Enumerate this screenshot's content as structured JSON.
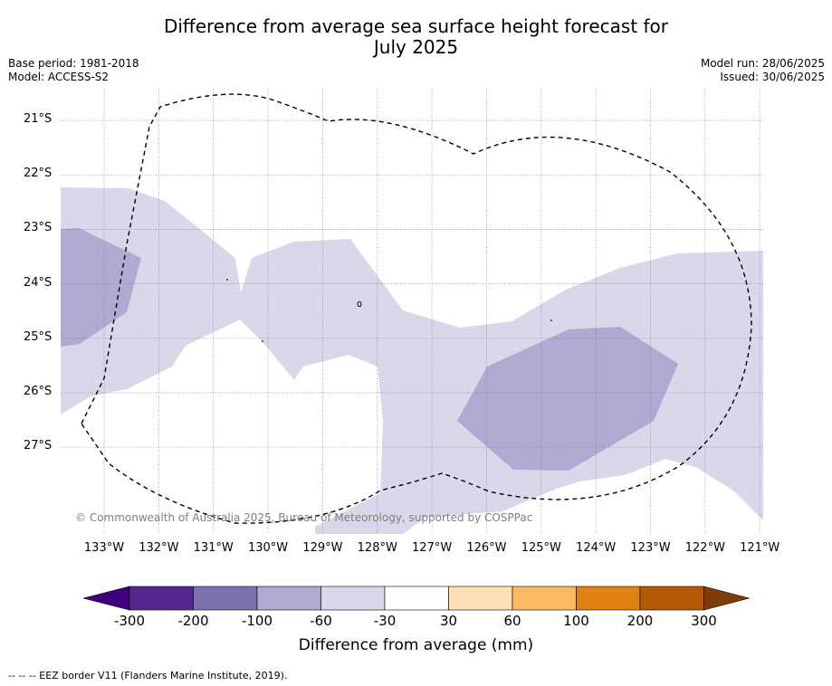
{
  "title": {
    "line1": "Difference from average sea surface height forecast for",
    "line2": "July 2025"
  },
  "meta": {
    "base_period": "Base period: 1981-2018",
    "model": "Model: ACCESS-S2",
    "model_run": "Model run: 28/06/2025",
    "issued": "Issued: 30/06/2025"
  },
  "map": {
    "lat_labels": [
      "21°S",
      "22°S",
      "23°S",
      "24°S",
      "25°S",
      "26°S",
      "27°S"
    ],
    "lon_labels": [
      "133°W",
      "132°W",
      "131°W",
      "130°W",
      "129°W",
      "128°W",
      "127°W",
      "126°W",
      "125°W",
      "124°W",
      "123°W",
      "122°W",
      "121°W"
    ],
    "copyright": "© Commonwealth of Australia 2025, Bureau of Meteorology, supported by COSPPac",
    "fill_colors": {
      "light": "#d8d8ea",
      "medium": "#b0a9d1"
    }
  },
  "colorbar": {
    "ticks": [
      "-300",
      "-200",
      "-100",
      "-60",
      "-30",
      "30",
      "60",
      "100",
      "200",
      "300"
    ],
    "colors": [
      "#3f007d",
      "#54278f",
      "#7e72ad",
      "#b0a9d1",
      "#d8d8ea",
      "#ffffff",
      "#fee0b6",
      "#fdb863",
      "#e08214",
      "#b35806",
      "#7f3b08"
    ],
    "label": "Difference from average (mm)"
  },
  "footer": {
    "eez_note": "--  --  -- EEZ border V11 (Flanders Marine Institute, 2019)."
  }
}
